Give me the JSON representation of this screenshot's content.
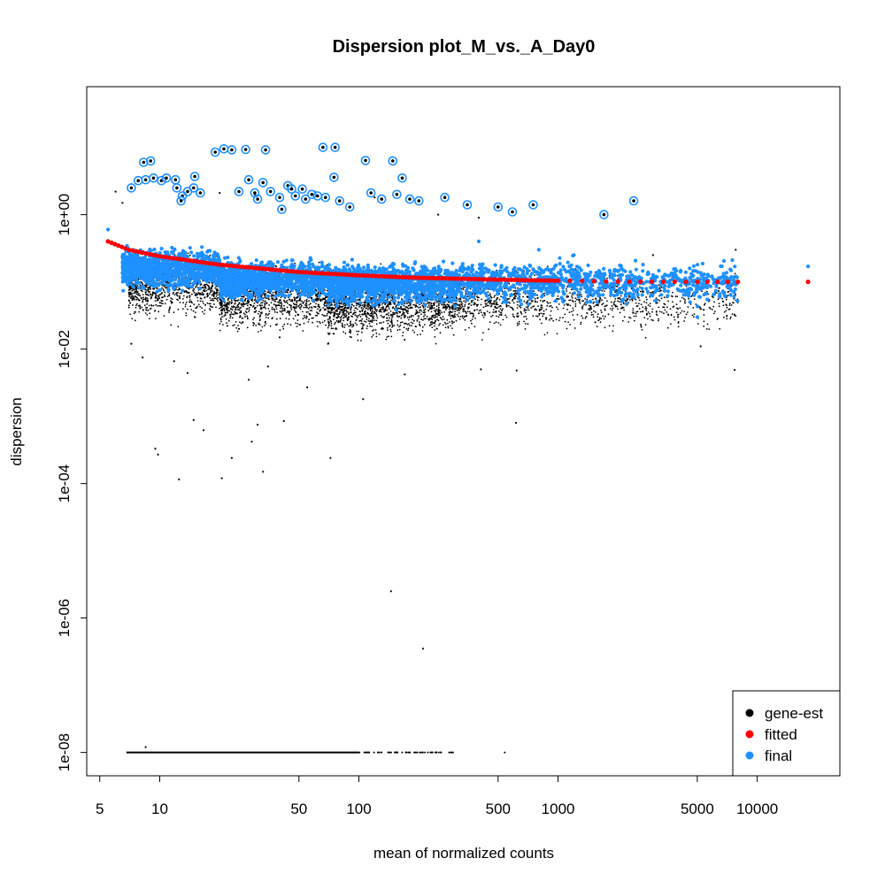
{
  "chart_data": {
    "type": "scatter",
    "title": "Dispersion plot_M_vs._A_Day0",
    "xlabel": "mean of normalized counts",
    "ylabel": "dispersion",
    "x_scale": "log",
    "y_scale": "log",
    "xlim": [
      4.3,
      26000
    ],
    "ylim": [
      4.5e-09,
      80
    ],
    "x_ticks": [
      5,
      10,
      50,
      100,
      500,
      1000,
      5000,
      10000
    ],
    "x_tick_labels": [
      "5",
      "10",
      "50",
      "100",
      "500",
      "1000",
      "5000",
      "10000"
    ],
    "y_ticks": [
      1e-08,
      1e-06,
      0.0001,
      0.01,
      1
    ],
    "y_tick_labels": [
      "1e-08",
      "1e-06",
      "1e-04",
      "1e-02",
      "1e+00"
    ],
    "grid": false,
    "legend": {
      "position": "bottom-right",
      "entries": [
        {
          "label": "gene-est",
          "color": "#000000"
        },
        {
          "label": "fitted",
          "color": "#ff0000"
        },
        {
          "label": "final",
          "color": "#1e90ff"
        }
      ]
    },
    "series": [
      {
        "name": "gene-est",
        "color": "#000000",
        "description_points": "sample of gene-wise estimates",
        "points": [
          [
            7.2,
            0.012
          ],
          [
            8.2,
            0.0075
          ],
          [
            9.5,
            0.00033
          ],
          [
            9.8,
            0.00027
          ],
          [
            11.8,
            0.0066
          ],
          [
            12.5,
            0.000115
          ],
          [
            13.8,
            0.0044
          ],
          [
            14.8,
            0.00088
          ],
          [
            16.6,
            0.00062
          ],
          [
            20.5,
            0.00012
          ],
          [
            23,
            0.00024
          ],
          [
            28,
            0.0035
          ],
          [
            29,
            0.00042
          ],
          [
            31,
            0.00075
          ],
          [
            33,
            0.00015
          ],
          [
            35,
            0.0055
          ],
          [
            42,
            0.00085
          ],
          [
            55,
            0.0027
          ],
          [
            72,
            0.00024
          ],
          [
            105,
            0.0018
          ],
          [
            145,
            2.5e-06
          ],
          [
            170,
            0.0042
          ],
          [
            210,
            3.5e-07
          ],
          [
            410,
            0.005
          ],
          [
            615,
            0.0008
          ],
          [
            620,
            0.0048
          ],
          [
            7700,
            0.0049
          ],
          [
            7800,
            0.3
          ],
          [
            6.0,
            2.2
          ],
          [
            6.5,
            1.5
          ],
          [
            20,
            2.1
          ],
          [
            30,
            2.0
          ],
          [
            60,
            2.2
          ],
          [
            120,
            1.8
          ],
          [
            250,
            1.0
          ],
          [
            400,
            0.9
          ],
          [
            1200,
            0.25
          ],
          [
            1600,
            0.05
          ],
          [
            3000,
            0.25
          ],
          [
            4000,
            0.03
          ],
          [
            5200,
            0.011
          ],
          [
            8.5,
            1.2e-08
          ],
          [
            9,
            0.04
          ],
          [
            15,
            0.03
          ],
          [
            25,
            0.02
          ],
          [
            40,
            0.015
          ],
          [
            70,
            0.012
          ],
          [
            90,
            0.018
          ],
          [
            130,
            0.02
          ],
          [
            300,
            0.03
          ],
          [
            700,
            0.06
          ],
          [
            2500,
            0.07
          ]
        ],
        "floor_band": {
          "y": 1e-08,
          "x_from": 6.8,
          "x_to": 300,
          "extra_points_x": [
            540
          ]
        },
        "cloud": [
          {
            "x_from": 7,
            "x_to": 20,
            "y_median": 0.09,
            "spread_log10": 0.55
          },
          {
            "x_from": 20,
            "x_to": 70,
            "y_median": 0.06,
            "spread_log10": 0.55
          },
          {
            "x_from": 70,
            "x_to": 300,
            "y_median": 0.045,
            "spread_log10": 0.55
          },
          {
            "x_from": 300,
            "x_to": 8000,
            "y_median": 0.05,
            "spread_log10": 0.5
          }
        ]
      },
      {
        "name": "fitted",
        "color": "#ff0000",
        "points": [
          [
            5.5,
            0.4
          ],
          [
            7,
            0.3
          ],
          [
            10,
            0.24
          ],
          [
            20,
            0.18
          ],
          [
            50,
            0.14
          ],
          [
            100,
            0.125
          ],
          [
            200,
            0.115
          ],
          [
            500,
            0.108
          ],
          [
            1000,
            0.104
          ],
          [
            2000,
            0.101
          ],
          [
            5000,
            0.1
          ],
          [
            8000,
            0.1
          ],
          [
            18000,
            0.1
          ]
        ]
      },
      {
        "name": "final",
        "color": "#1e90ff",
        "outliers_circled": [
          [
            7.2,
            2.5
          ],
          [
            7.8,
            3.2
          ],
          [
            8.3,
            6.0
          ],
          [
            9,
            6.3
          ],
          [
            8.5,
            3.3
          ],
          [
            9.3,
            3.5
          ],
          [
            10.2,
            3.2
          ],
          [
            10.8,
            3.5
          ],
          [
            12,
            3.3
          ],
          [
            12.2,
            2.5
          ],
          [
            13,
            1.9
          ],
          [
            13.8,
            2.2
          ],
          [
            14.8,
            2.5
          ],
          [
            12.8,
            1.6
          ],
          [
            15,
            3.7
          ],
          [
            16,
            2.1
          ],
          [
            19,
            8.5
          ],
          [
            21,
            9.5
          ],
          [
            23,
            9.2
          ],
          [
            25,
            2.2
          ],
          [
            27,
            9.3
          ],
          [
            28,
            3.3
          ],
          [
            30,
            2.1
          ],
          [
            31,
            1.7
          ],
          [
            33,
            3.0
          ],
          [
            34,
            9.2
          ],
          [
            36,
            2.2
          ],
          [
            40,
            1.8
          ],
          [
            41,
            1.2
          ],
          [
            44,
            2.7
          ],
          [
            46,
            2.4
          ],
          [
            48,
            1.9
          ],
          [
            52,
            2.4
          ],
          [
            54,
            1.7
          ],
          [
            58,
            2.0
          ],
          [
            62,
            1.9
          ],
          [
            66,
            10.0
          ],
          [
            68,
            1.8
          ],
          [
            75,
            3.6
          ],
          [
            76,
            10.0
          ],
          [
            80,
            1.6
          ],
          [
            90,
            1.3
          ],
          [
            108,
            6.4
          ],
          [
            115,
            2.1
          ],
          [
            130,
            1.7
          ],
          [
            148,
            6.3
          ],
          [
            155,
            2.0
          ],
          [
            165,
            3.5
          ],
          [
            200,
            1.6
          ],
          [
            270,
            1.8
          ],
          [
            350,
            1.4
          ],
          [
            500,
            1.3
          ],
          [
            590,
            1.1
          ],
          [
            750,
            1.4
          ],
          [
            1700,
            1.0
          ],
          [
            2400,
            1.6
          ],
          [
            180,
            1.7
          ]
        ],
        "points": [
          [
            5.5,
            0.6
          ],
          [
            18000,
            0.17
          ],
          [
            6000,
            0.11
          ],
          [
            6500,
            0.06
          ],
          [
            5000,
            0.03
          ],
          [
            7500,
            0.21
          ],
          [
            4600,
            0.05
          ],
          [
            1200,
            0.25
          ],
          [
            800,
            0.3
          ],
          [
            400,
            0.4
          ]
        ],
        "cloud": [
          {
            "x_from": 6.5,
            "x_to": 20,
            "y_median": 0.16,
            "spread_log10": 0.35
          },
          {
            "x_from": 20,
            "x_to": 70,
            "y_median": 0.11,
            "spread_log10": 0.35
          },
          {
            "x_from": 70,
            "x_to": 300,
            "y_median": 0.095,
            "spread_log10": 0.35
          },
          {
            "x_from": 300,
            "x_to": 8000,
            "y_median": 0.1,
            "spread_log10": 0.35
          }
        ]
      }
    ]
  }
}
